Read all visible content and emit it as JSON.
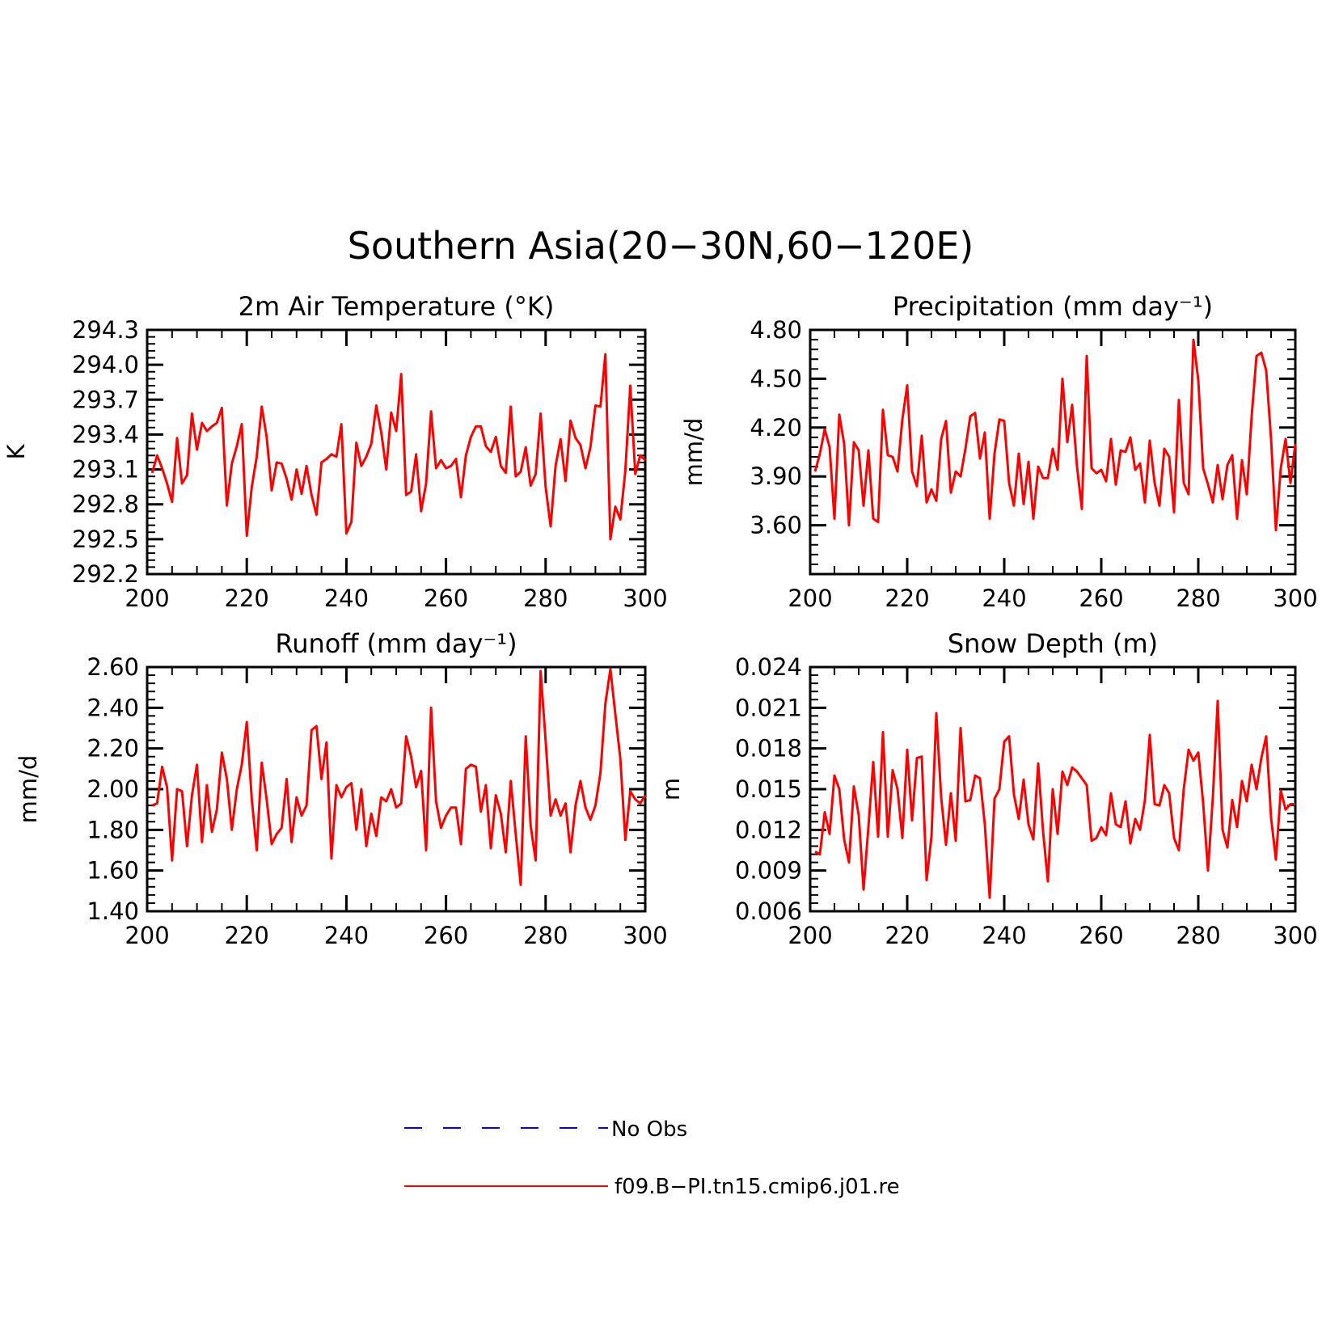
{
  "figure_title": "Southern Asia(20−30N,60−120E)",
  "legend": [
    {
      "label": "No Obs",
      "color": "#0000ff",
      "dash": true
    },
    {
      "label": "f09.B−PI.tn15.cmip6.j01.re",
      "color": "#ff0000",
      "dash": false
    }
  ],
  "chart_data": [
    {
      "type": "line",
      "title": "2m Air Temperature (°K)",
      "ylabel": "K",
      "xlim": [
        200,
        300
      ],
      "ylim": [
        292.2,
        294.3
      ],
      "xticks": [
        200,
        220,
        240,
        260,
        280,
        300
      ],
      "xtick_labels": [
        "200",
        "220",
        "240",
        "260",
        "280",
        "300"
      ],
      "yticks": [
        292.2,
        292.5,
        292.8,
        293.1,
        293.4,
        293.7,
        294.0,
        294.3
      ],
      "ytick_labels": [
        "292.2",
        "292.5",
        "292.8",
        "293.1",
        "293.4",
        "293.7",
        "294.0",
        "294.3"
      ],
      "series": [
        {
          "name": "f09.B−PI.tn15.cmip6.j01.re",
          "color": "#ff0000",
          "x_start": 201,
          "x_step": 1,
          "values": [
            293.07,
            293.22,
            293.11,
            292.98,
            292.82,
            293.37,
            292.98,
            293.05,
            293.58,
            293.27,
            293.5,
            293.43,
            293.47,
            293.5,
            293.63,
            292.79,
            293.15,
            293.3,
            293.49,
            292.53,
            292.95,
            293.21,
            293.64,
            293.38,
            292.92,
            293.16,
            293.15,
            293.02,
            292.84,
            293.1,
            292.89,
            293.13,
            292.88,
            292.71,
            293.16,
            293.19,
            293.23,
            293.21,
            293.49,
            292.55,
            292.65,
            293.33,
            293.13,
            293.21,
            293.32,
            293.65,
            293.42,
            293.1,
            293.59,
            293.43,
            293.92,
            292.88,
            292.91,
            293.23,
            292.74,
            292.98,
            293.6,
            293.11,
            293.18,
            293.11,
            293.13,
            293.19,
            292.86,
            293.22,
            293.38,
            293.47,
            293.47,
            293.3,
            293.25,
            293.38,
            293.13,
            293.07,
            293.64,
            293.04,
            293.08,
            293.29,
            292.96,
            293.06,
            293.58,
            292.95,
            292.61,
            293.13,
            293.36,
            293.0,
            293.52,
            293.37,
            293.31,
            293.11,
            293.29,
            293.65,
            293.64,
            294.09,
            292.5,
            292.78,
            292.67,
            293.09,
            293.82,
            293.06,
            293.22,
            293.18
          ]
        }
      ]
    },
    {
      "type": "line",
      "title": "Precipitation (mm day⁻¹)",
      "ylabel": "mm/d",
      "xlim": [
        200,
        300
      ],
      "ylim": [
        3.3,
        4.8
      ],
      "xticks": [
        200,
        220,
        240,
        260,
        280,
        300
      ],
      "xtick_labels": [
        "200",
        "220",
        "240",
        "260",
        "280",
        "300"
      ],
      "yticks": [
        3.6,
        3.9,
        4.2,
        4.5,
        4.8
      ],
      "ytick_labels": [
        "3.60",
        "3.90",
        "4.20",
        "4.50",
        "4.80"
      ],
      "series": [
        {
          "name": "f09.B−PI.tn15.cmip6.j01.re",
          "color": "#ff0000",
          "x_start": 201,
          "x_step": 1,
          "values": [
            3.93,
            4.04,
            4.19,
            4.08,
            3.64,
            4.28,
            4.1,
            3.6,
            4.11,
            4.06,
            3.72,
            4.06,
            3.64,
            3.62,
            4.31,
            4.03,
            4.02,
            3.93,
            4.25,
            4.46,
            3.93,
            3.84,
            4.15,
            3.74,
            3.82,
            3.75,
            4.13,
            4.24,
            3.8,
            3.93,
            3.9,
            4.07,
            4.27,
            4.29,
            4.01,
            4.17,
            3.64,
            4.04,
            4.25,
            4.24,
            3.86,
            3.72,
            4.04,
            3.73,
            3.99,
            3.64,
            3.96,
            3.89,
            3.89,
            4.07,
            3.94,
            4.5,
            4.11,
            4.34,
            3.96,
            3.7,
            4.64,
            3.95,
            3.92,
            3.94,
            3.87,
            4.13,
            3.85,
            4.06,
            4.05,
            4.14,
            3.94,
            3.98,
            3.74,
            4.12,
            3.86,
            3.72,
            4.07,
            4.02,
            3.68,
            4.37,
            3.86,
            3.79,
            4.74,
            4.49,
            3.95,
            3.85,
            3.74,
            3.97,
            3.76,
            3.97,
            4.03,
            3.64,
            4.0,
            3.79,
            4.27,
            4.64,
            4.66,
            4.55,
            4.13,
            3.57,
            3.95,
            4.13,
            3.86,
            4.1
          ]
        }
      ]
    },
    {
      "type": "line",
      "title": "Runoff (mm day⁻¹)",
      "ylabel": "mm/d",
      "xlim": [
        200,
        300
      ],
      "ylim": [
        1.4,
        2.6
      ],
      "xticks": [
        200,
        220,
        240,
        260,
        280,
        300
      ],
      "xtick_labels": [
        "200",
        "220",
        "240",
        "260",
        "280",
        "300"
      ],
      "yticks": [
        1.4,
        1.6,
        1.8,
        2.0,
        2.2,
        2.4,
        2.6
      ],
      "ytick_labels": [
        "1.40",
        "1.60",
        "1.80",
        "2.00",
        "2.20",
        "2.40",
        "2.60"
      ],
      "series": [
        {
          "name": "f09.B−PI.tn15.cmip6.j01.re",
          "color": "#ff0000",
          "x_start": 201,
          "x_step": 1,
          "values": [
            1.92,
            1.93,
            2.11,
            2.01,
            1.65,
            2.0,
            1.99,
            1.72,
            1.97,
            2.12,
            1.74,
            2.02,
            1.79,
            1.9,
            2.18,
            2.05,
            1.8,
            2.0,
            2.12,
            2.33,
            1.95,
            1.7,
            2.13,
            1.95,
            1.73,
            1.78,
            1.81,
            2.05,
            1.74,
            1.96,
            1.87,
            1.92,
            2.29,
            2.31,
            2.05,
            2.23,
            1.66,
            2.02,
            1.96,
            2.01,
            2.03,
            1.8,
            2.0,
            1.72,
            1.88,
            1.77,
            1.96,
            1.94,
            2.0,
            1.91,
            1.93,
            2.26,
            2.16,
            2.01,
            2.09,
            1.7,
            2.4,
            1.94,
            1.81,
            1.87,
            1.91,
            1.91,
            1.73,
            2.1,
            2.12,
            2.11,
            1.89,
            2.02,
            1.71,
            1.97,
            1.88,
            1.69,
            2.04,
            1.78,
            1.53,
            2.26,
            1.82,
            1.65,
            2.58,
            2.24,
            1.87,
            1.95,
            1.87,
            1.93,
            1.69,
            1.92,
            2.04,
            1.91,
            1.85,
            1.92,
            2.08,
            2.42,
            2.59,
            2.37,
            2.15,
            1.75,
            1.99,
            1.95,
            1.93,
            1.97
          ]
        }
      ]
    },
    {
      "type": "line",
      "title": "Snow Depth (m)",
      "ylabel": "m",
      "xlim": [
        200,
        300
      ],
      "ylim": [
        0.006,
        0.024
      ],
      "xticks": [
        200,
        220,
        240,
        260,
        280,
        300
      ],
      "xtick_labels": [
        "200",
        "220",
        "240",
        "260",
        "280",
        "300"
      ],
      "yticks": [
        0.006,
        0.009,
        0.012,
        0.015,
        0.018,
        0.021,
        0.024
      ],
      "ytick_labels": [
        "0.006",
        "0.009",
        "0.012",
        "0.015",
        "0.018",
        "0.021",
        "0.024"
      ],
      "series": [
        {
          "name": "f09.B−PI.tn15.cmip6.j01.re",
          "color": "#ff0000",
          "x_start": 201,
          "x_step": 1,
          "values": [
            0.0104,
            0.0102,
            0.0133,
            0.0117,
            0.016,
            0.015,
            0.0113,
            0.0096,
            0.0152,
            0.0131,
            0.0076,
            0.0122,
            0.017,
            0.0115,
            0.0192,
            0.0115,
            0.0164,
            0.015,
            0.0114,
            0.0179,
            0.0127,
            0.0173,
            0.0174,
            0.0083,
            0.0115,
            0.0206,
            0.0144,
            0.0109,
            0.0147,
            0.0112,
            0.0195,
            0.0141,
            0.0142,
            0.016,
            0.0158,
            0.0124,
            0.007,
            0.0143,
            0.015,
            0.0185,
            0.0189,
            0.0146,
            0.0128,
            0.0157,
            0.0124,
            0.0113,
            0.0169,
            0.0119,
            0.0082,
            0.015,
            0.0117,
            0.0163,
            0.0153,
            0.0166,
            0.0163,
            0.0158,
            0.0153,
            0.0112,
            0.0114,
            0.0122,
            0.0116,
            0.0147,
            0.0124,
            0.0122,
            0.0141,
            0.011,
            0.0128,
            0.012,
            0.0142,
            0.019,
            0.0139,
            0.0138,
            0.0153,
            0.0147,
            0.0114,
            0.0105,
            0.015,
            0.0179,
            0.0171,
            0.0177,
            0.014,
            0.009,
            0.0144,
            0.0215,
            0.012,
            0.0107,
            0.0142,
            0.0122,
            0.0156,
            0.0141,
            0.0168,
            0.015,
            0.0173,
            0.0189,
            0.0129,
            0.0098,
            0.0149,
            0.0135,
            0.0139,
            0.0139
          ]
        }
      ]
    }
  ]
}
